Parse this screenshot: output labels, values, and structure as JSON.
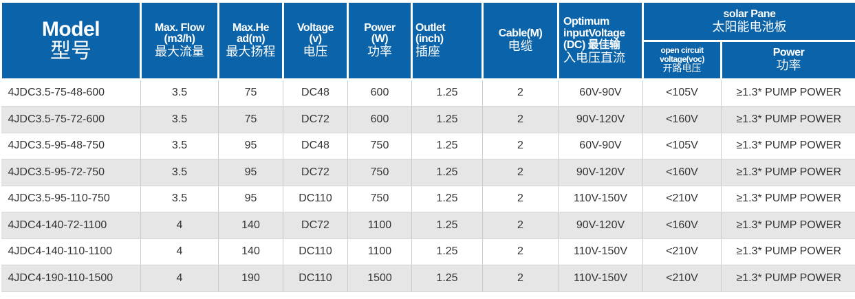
{
  "header": {
    "model": {
      "en": "Model",
      "cn": "型号"
    },
    "flow": {
      "en1": "Max. Flow",
      "en2": "(m3/h)",
      "cn": "最大流量"
    },
    "head": {
      "en1": "Max.He",
      "en2": "ad(m)",
      "cn": "最大扬程"
    },
    "voltage": {
      "en1": "Voltage",
      "en2": "(v)",
      "cn": "电压"
    },
    "power": {
      "en1": "Power",
      "en2": "(W)",
      "cn": "功率"
    },
    "outlet": {
      "en1": "Outlet",
      "en2": "(inch)",
      "cn": "插座"
    },
    "cable": {
      "en": "Cable(M)",
      "cn": "电缆"
    },
    "optimum": {
      "en1": "Optimum",
      "en2": "inputVoltage",
      "en3": "(DC) 最佳输",
      "cn": "入电压直流"
    },
    "solar": {
      "en": "solar Pane",
      "cn": "太阳能电池板"
    },
    "voc": {
      "en1": "open circuit",
      "en2": "voltage(voc)",
      "cn": "开路电压"
    },
    "solar_power": {
      "en": "Power",
      "cn": "功率"
    }
  },
  "rows": [
    [
      "4JDC3.5-75-48-600",
      "3.5",
      "75",
      "DC48",
      "600",
      "1.25",
      "2",
      "60V-90V",
      "<105V",
      "≥1.3* PUMP POWER"
    ],
    [
      "4JDC3.5-75-72-600",
      "3.5",
      "75",
      "DC72",
      "600",
      "1.25",
      "2",
      "90V-120V",
      "<160V",
      "≥1.3* PUMP POWER"
    ],
    [
      "4JDC3.5-95-48-750",
      "3.5",
      "95",
      "DC48",
      "750",
      "1.25",
      "2",
      "60V-90V",
      "<105V",
      "≥1.3* PUMP POWER"
    ],
    [
      "4JDC3.5-95-72-750",
      "3.5",
      "95",
      "DC72",
      "750",
      "1.25",
      "2",
      "90V-120V",
      "<160V",
      "≥1.3* PUMP POWER"
    ],
    [
      "4JDC3.5-95-110-750",
      "3.5",
      "95",
      "DC110",
      "750",
      "1.25",
      "2",
      "110V-150V",
      "<210V",
      "≥1.3* PUMP POWER"
    ],
    [
      "4JDC4-140-72-1100",
      "4",
      "140",
      "DC72",
      "1100",
      "1.25",
      "2",
      "90V-120V",
      "<160V",
      "≥1.3* PUMP POWER"
    ],
    [
      "4JDC4-140-110-1100",
      "4",
      "140",
      "DC110",
      "1100",
      "1.25",
      "2",
      "110V-150V",
      "<210V",
      "≥1.3* PUMP POWER"
    ],
    [
      "4JDC4-190-110-1500",
      "4",
      "190",
      "DC110",
      "1500",
      "1.25",
      "2",
      "110V-150V",
      "<210V",
      "≥1.3* PUMP POWER"
    ]
  ],
  "colors": {
    "header_bg": "#0b63a9",
    "alt_row": "#e6e6e6"
  }
}
